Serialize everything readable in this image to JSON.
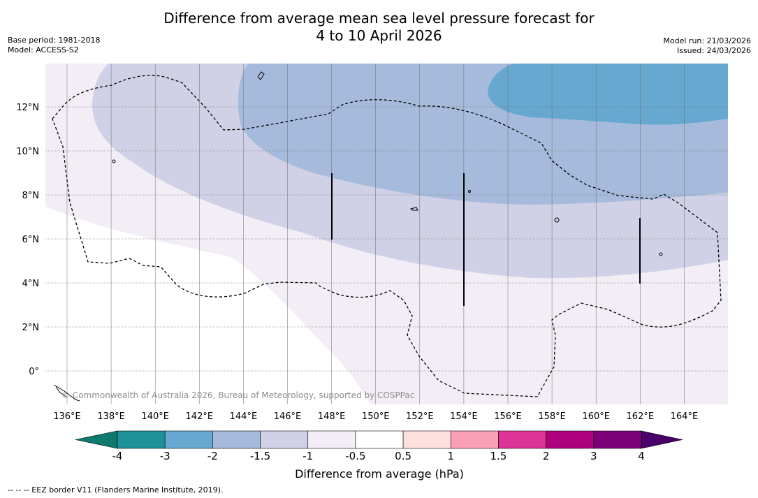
{
  "header": {
    "title_line1": "Difference from average mean sea level pressure forecast for",
    "title_line2": "4 to 10 April 2026",
    "base_period": "Base period: 1981-2018",
    "model": "Model: ACCESS-S2",
    "model_run": "Model run: 21/03/2026",
    "issued": "Issued: 24/03/2026"
  },
  "map": {
    "lat_labels": [
      "12°N",
      "10°N",
      "8°N",
      "6°N",
      "4°N",
      "2°N",
      "0°"
    ],
    "lon_labels": [
      "136°E",
      "138°E",
      "140°E",
      "142°E",
      "144°E",
      "146°E",
      "148°E",
      "150°E",
      "152°E",
      "154°E",
      "156°E",
      "158°E",
      "160°E",
      "162°E",
      "164°E"
    ],
    "credit": "© Commonwealth of Australia 2026, Bureau of Meteorology, supported by COSPPac"
  },
  "colorbar": {
    "title": "Difference from average (hPa)",
    "tick_labels": [
      "-4",
      "-3",
      "-2",
      "-1.5",
      "-1",
      "-0.5",
      "0.5",
      "1",
      "1.5",
      "2",
      "3",
      "4"
    ],
    "colors": [
      "#0e7a6e",
      "#1f9199",
      "#66a8cf",
      "#a6bbdb",
      "#d0d1e6",
      "#f3eef6",
      "#ffffff",
      "#fde0dd",
      "#fa9fb5",
      "#dd3497",
      "#ae017e",
      "#7a0177",
      "#49006a"
    ]
  },
  "footnote": "--  --  -- EEZ border V11 (Flanders Marine Institute, 2019)."
}
